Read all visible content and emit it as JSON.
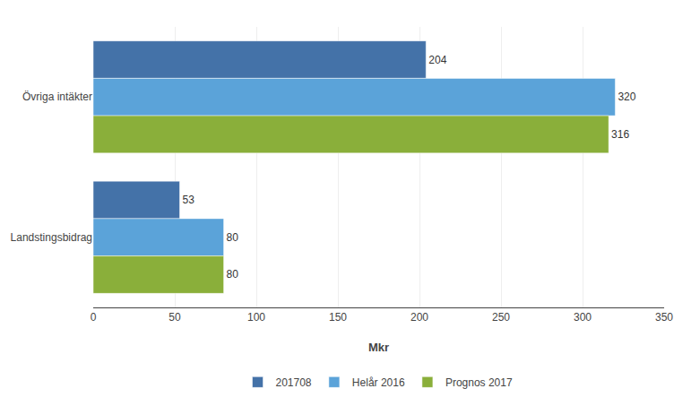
{
  "chart_data": {
    "type": "bar",
    "orientation": "horizontal",
    "categories": [
      "Övriga intäkter",
      "Landstingsbidrag"
    ],
    "series": [
      {
        "name": "201708",
        "values": [
          204,
          53
        ],
        "color": "#4472A8"
      },
      {
        "name": "Helår 2016",
        "values": [
          320,
          80
        ],
        "color": "#5BA3D9"
      },
      {
        "name": "Prognos 2017",
        "values": [
          316,
          80
        ],
        "color": "#8AAF3A"
      }
    ],
    "xlabel": "Mkr",
    "xlim": [
      0,
      350
    ],
    "xticks": [
      0,
      50,
      100,
      150,
      200,
      250,
      300,
      350
    ],
    "grid": true,
    "data_labels": true,
    "legend": "bottom"
  }
}
